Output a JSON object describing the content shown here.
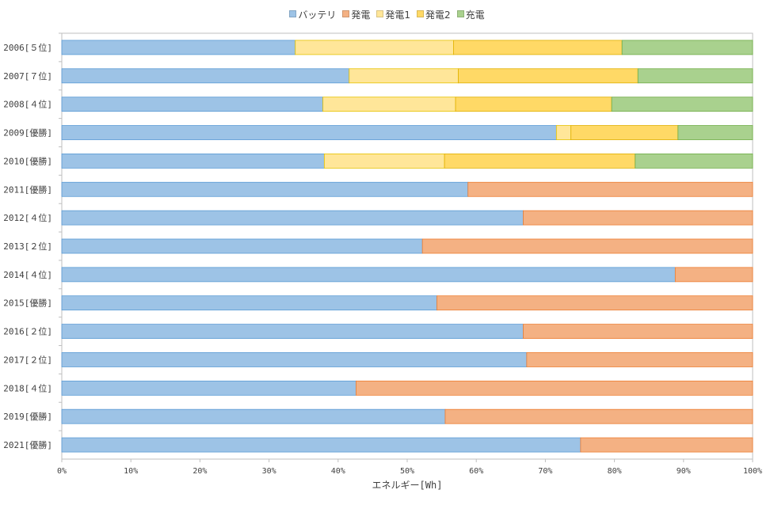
{
  "chart_data": {
    "type": "bar",
    "orientation": "horizontal",
    "stacked": "percent",
    "xlabel": "エネルギー[Wh]",
    "xlim": [
      0,
      100
    ],
    "x_ticks": [
      "0%",
      "10%",
      "20%",
      "30%",
      "40%",
      "50%",
      "60%",
      "70%",
      "80%",
      "90%",
      "100%"
    ],
    "grid": false,
    "legend_position": "top-center",
    "categories": [
      "2006[５位]",
      "2007[７位]",
      "2008[４位]",
      "2009[優勝]",
      "2010[優勝]",
      "2011[優勝]",
      "2012[４位]",
      "2013[２位]",
      "2014[４位]",
      "2015[優勝]",
      "2016[２位]",
      "2017[２位]",
      "2018[４位]",
      "2019[優勝]",
      "2021[優勝]"
    ],
    "series": [
      {
        "name": "バッテリ",
        "color": "#9dc3e6",
        "stroke": "#5b9bd5",
        "values": [
          33.8,
          41.6,
          37.8,
          71.6,
          38.0,
          58.8,
          66.8,
          52.2,
          88.8,
          54.3,
          66.8,
          67.3,
          42.6,
          55.5,
          75.1
        ]
      },
      {
        "name": "発電",
        "color": "#f4b183",
        "stroke": "#ed7d31",
        "values": [
          0,
          0,
          0,
          0,
          0,
          41.2,
          33.2,
          47.8,
          11.2,
          45.7,
          33.2,
          32.7,
          57.4,
          44.5,
          24.9
        ]
      },
      {
        "name": "発電1",
        "color": "#ffe699",
        "stroke": "#e6c200",
        "values": [
          22.9,
          15.8,
          19.2,
          2.1,
          17.4,
          0,
          0,
          0,
          0,
          0,
          0,
          0,
          0,
          0,
          0
        ]
      },
      {
        "name": "発電2",
        "color": "#ffd966",
        "stroke": "#e0b000",
        "values": [
          24.4,
          26.0,
          22.6,
          15.5,
          27.6,
          0,
          0,
          0,
          0,
          0,
          0,
          0,
          0,
          0,
          0
        ]
      },
      {
        "name": "充電",
        "color": "#a9d18e",
        "stroke": "#70ad47",
        "values": [
          18.9,
          16.6,
          20.4,
          10.8,
          17.0,
          0,
          0,
          0,
          0,
          0,
          0,
          0,
          0,
          0,
          0
        ]
      }
    ]
  }
}
